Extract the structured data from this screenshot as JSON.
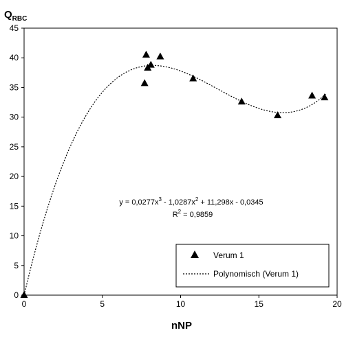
{
  "chart_data": {
    "type": "scatter",
    "ylabel_main": "Q",
    "ylabel_sub": "RBC",
    "xlabel": "nNP",
    "xlim": [
      0,
      20
    ],
    "ylim": [
      0,
      45
    ],
    "x_ticks": [
      0,
      5,
      10,
      15,
      20
    ],
    "y_ticks": [
      0,
      5,
      10,
      15,
      20,
      25,
      30,
      35,
      40,
      45
    ],
    "grid": false,
    "series": [
      {
        "name": "Verum 1",
        "marker": "triangle",
        "points": [
          {
            "x": 0,
            "y": 0
          },
          {
            "x": 7.7,
            "y": 35.7
          },
          {
            "x": 7.8,
            "y": 40.5
          },
          {
            "x": 7.9,
            "y": 38.3
          },
          {
            "x": 8.1,
            "y": 38.8
          },
          {
            "x": 8.7,
            "y": 40.2
          },
          {
            "x": 10.8,
            "y": 36.5
          },
          {
            "x": 13.9,
            "y": 32.6
          },
          {
            "x": 16.2,
            "y": 30.3
          },
          {
            "x": 18.4,
            "y": 33.6
          },
          {
            "x": 19.2,
            "y": 33.3
          }
        ]
      }
    ],
    "trendline": {
      "name": "Polynomisch (Verum 1)",
      "type": "polynomial",
      "coefficients": [
        0.0277,
        -1.0287,
        11.298,
        -0.0345
      ],
      "x_range": [
        0,
        19.3
      ],
      "style": "dotted"
    },
    "equation": {
      "prefix": "y = 0,0277x",
      "sup1": "3",
      "mid1": " - 1,0287x",
      "sup2": "2",
      "suffix": " + 11,298x - 0,0345",
      "r2_prefix": "R",
      "r2_sup": "2",
      "r2_value": " = 0,9859"
    },
    "legend": {
      "position": "bottom-right",
      "items": [
        {
          "label": "Verum 1",
          "symbol": "triangle"
        },
        {
          "label": "Polynomisch (Verum 1)",
          "symbol": "dotted-line"
        }
      ]
    }
  }
}
